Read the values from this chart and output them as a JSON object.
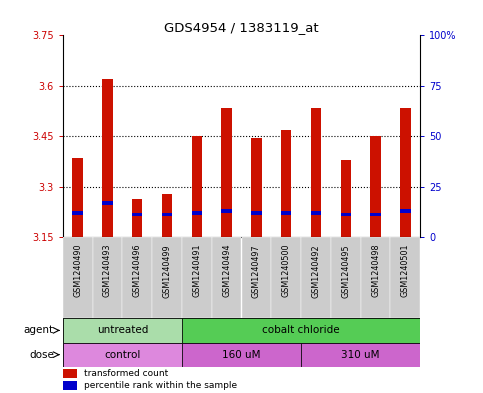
{
  "title": "GDS4954 / 1383119_at",
  "samples": [
    "GSM1240490",
    "GSM1240493",
    "GSM1240496",
    "GSM1240499",
    "GSM1240491",
    "GSM1240494",
    "GSM1240497",
    "GSM1240500",
    "GSM1240492",
    "GSM1240495",
    "GSM1240498",
    "GSM1240501"
  ],
  "transformed_counts": [
    3.385,
    3.62,
    3.265,
    3.28,
    3.45,
    3.535,
    3.445,
    3.47,
    3.535,
    3.38,
    3.45,
    3.535
  ],
  "blue_positions": [
    3.222,
    3.252,
    3.218,
    3.218,
    3.222,
    3.228,
    3.222,
    3.222,
    3.222,
    3.218,
    3.218,
    3.228
  ],
  "ymin": 3.15,
  "ymax": 3.75,
  "yticks": [
    3.15,
    3.3,
    3.45,
    3.6,
    3.75
  ],
  "ytick_labels": [
    "3.15",
    "3.3",
    "3.45",
    "3.6",
    "3.75"
  ],
  "right_yticks": [
    0,
    25,
    50,
    75,
    100
  ],
  "right_ytick_labels": [
    "0",
    "25",
    "50",
    "75",
    "100%"
  ],
  "grid_lines": [
    3.3,
    3.45,
    3.6
  ],
  "agent_groups": [
    {
      "label": "untreated",
      "start": 0,
      "end": 4,
      "color": "#aaddaa"
    },
    {
      "label": "cobalt chloride",
      "start": 4,
      "end": 12,
      "color": "#55cc55"
    }
  ],
  "dose_groups": [
    {
      "label": "control",
      "start": 0,
      "end": 4,
      "color": "#dd88dd"
    },
    {
      "label": "160 uM",
      "start": 4,
      "end": 8,
      "color": "#cc66cc"
    },
    {
      "label": "310 uM",
      "start": 8,
      "end": 12,
      "color": "#cc66cc"
    }
  ],
  "bar_color": "#cc1100",
  "blue_color": "#0000cc",
  "bg_color": "#ffffff",
  "tick_bg_color": "#cccccc",
  "left_axis_color": "#cc0000",
  "right_axis_color": "#0000cc"
}
